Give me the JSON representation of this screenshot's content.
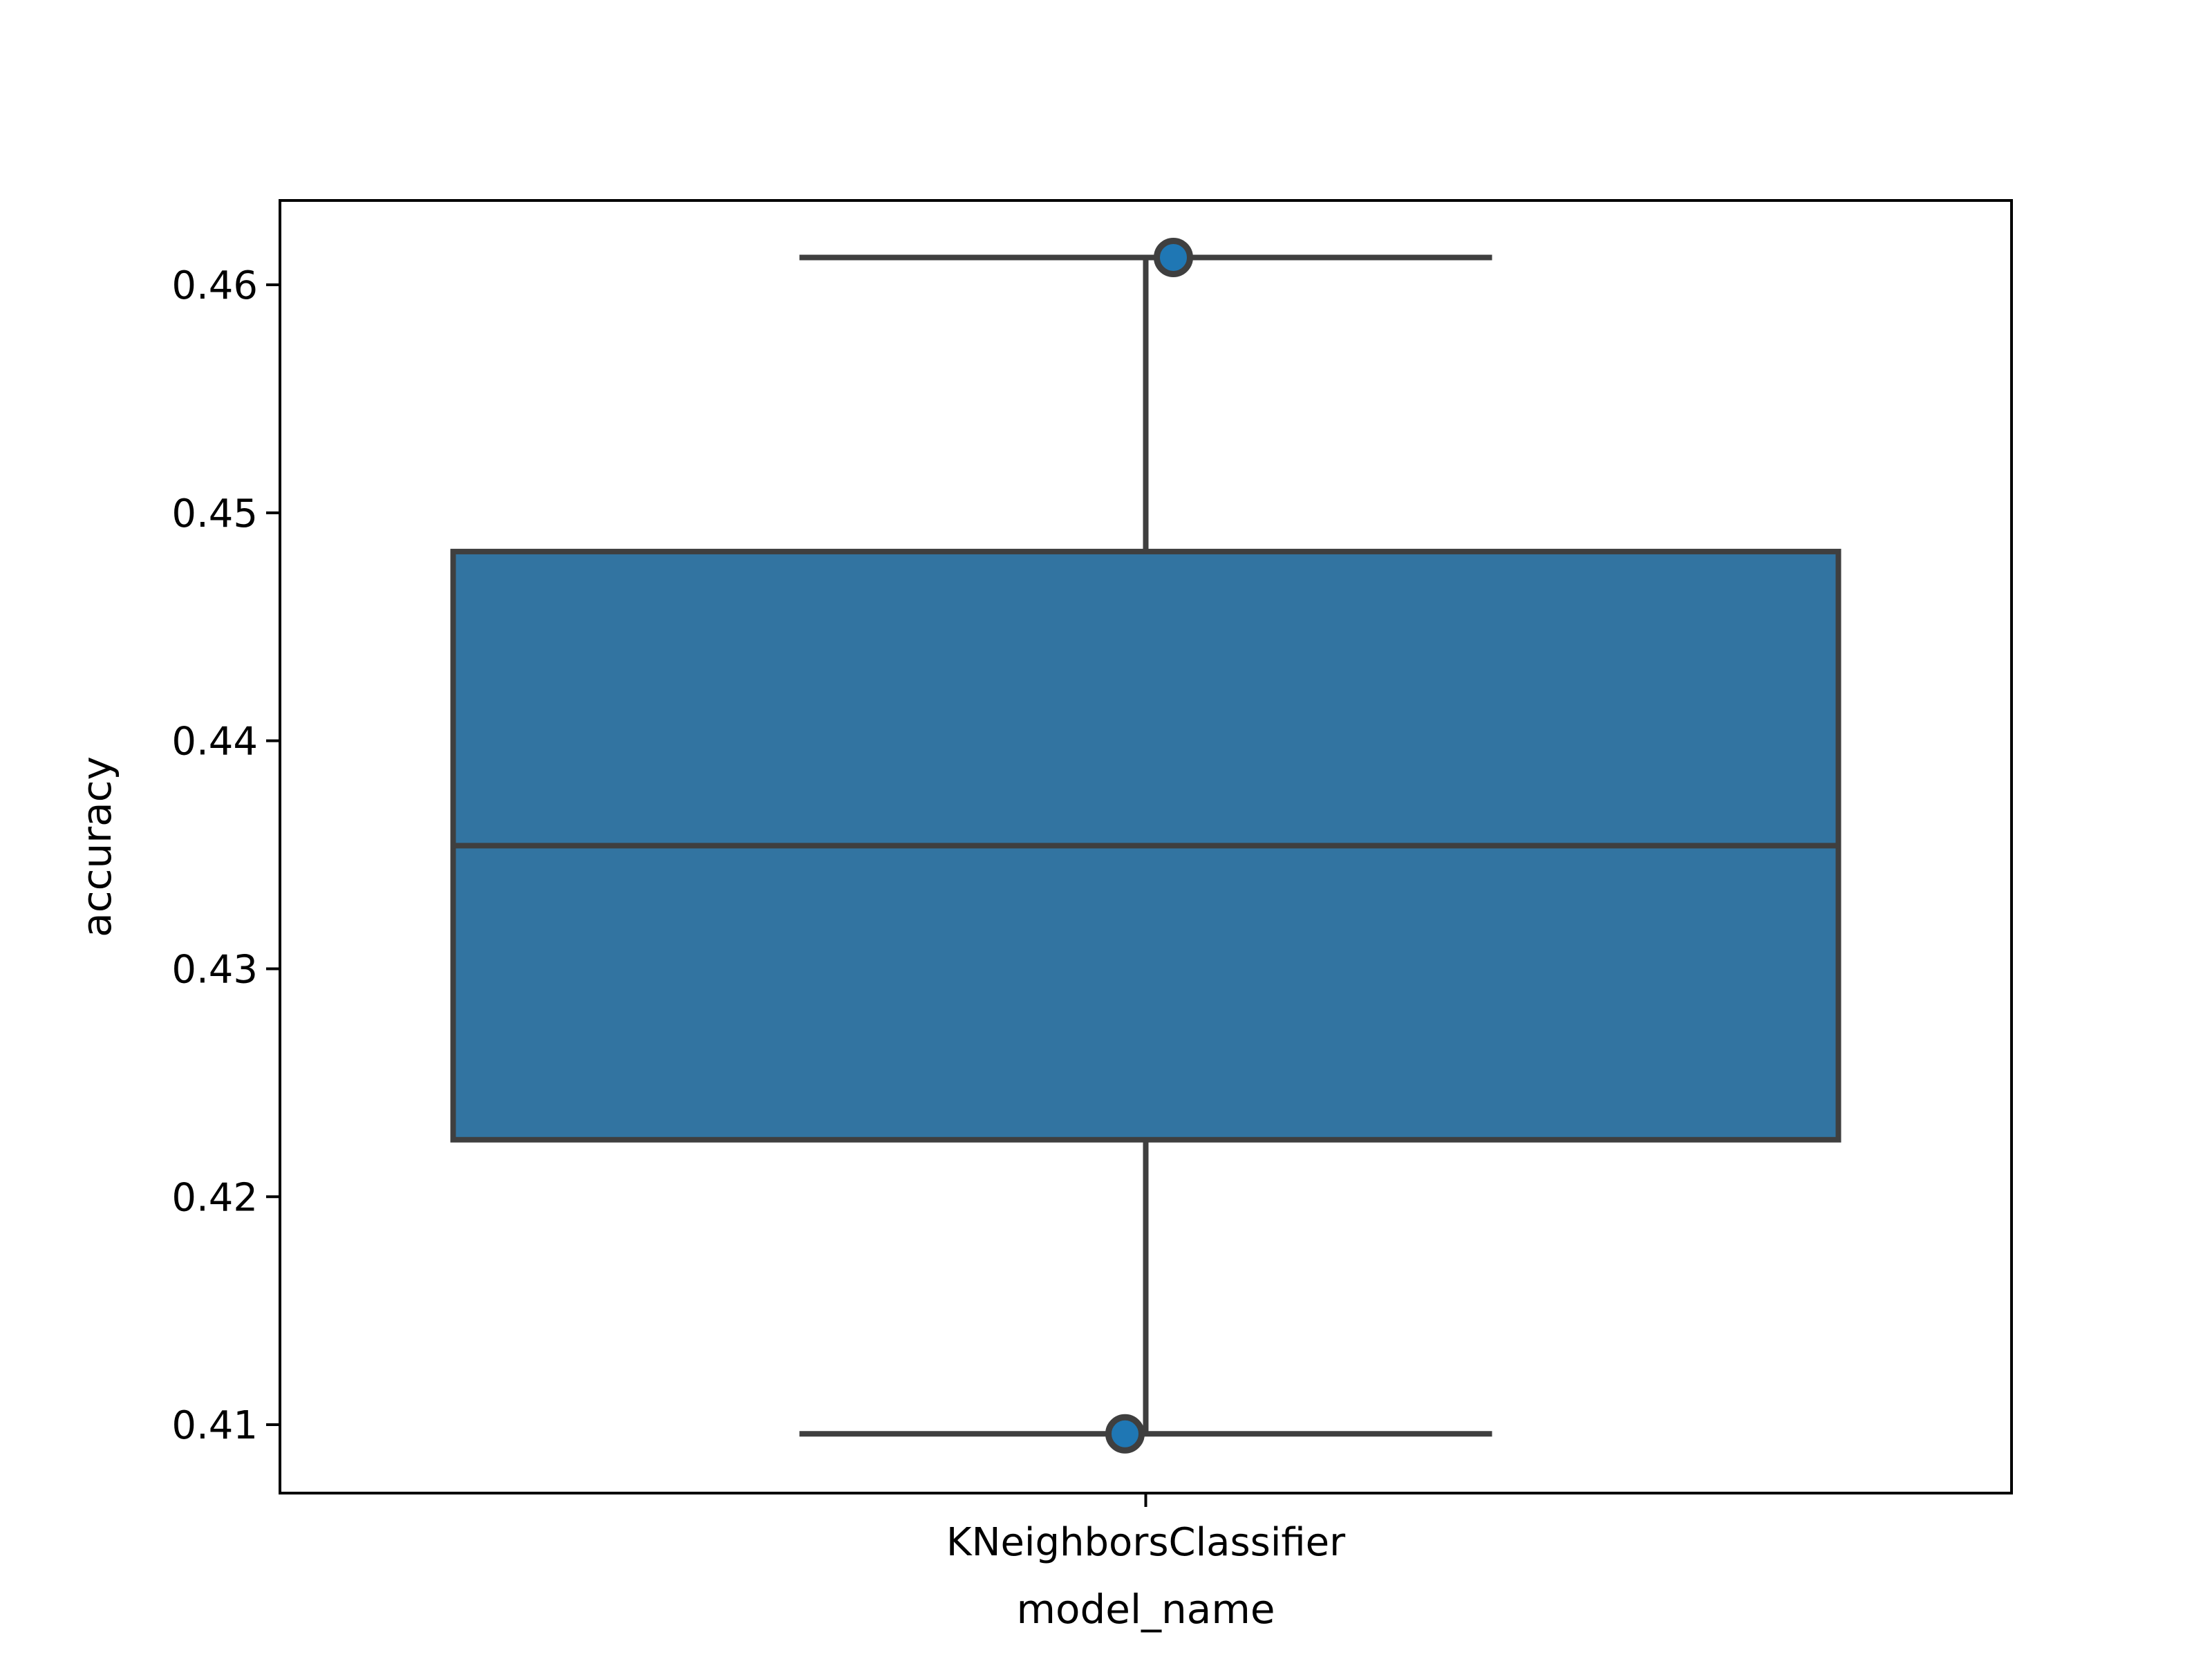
{
  "chart_data": {
    "type": "box",
    "xlabel": "model_name",
    "ylabel": "accuracy",
    "ylim": [
      0.407,
      0.4637
    ],
    "yticks": [
      0.41,
      0.42,
      0.43,
      0.44,
      0.45,
      0.46
    ],
    "ytick_labels": [
      "0.41",
      "0.42",
      "0.43",
      "0.44",
      "0.45",
      "0.46"
    ],
    "categories": [
      "KNeighborsClassifier"
    ],
    "boxes": [
      {
        "category": "KNeighborsClassifier",
        "min": 0.4096,
        "q1": 0.4225,
        "median": 0.4354,
        "q3": 0.4483,
        "max": 0.4612,
        "points": [
          0.4612,
          0.4096
        ]
      }
    ],
    "colors": {
      "box": "#3274a1",
      "line": "#3f3f3f",
      "axes": "#000000"
    },
    "grid": false
  }
}
